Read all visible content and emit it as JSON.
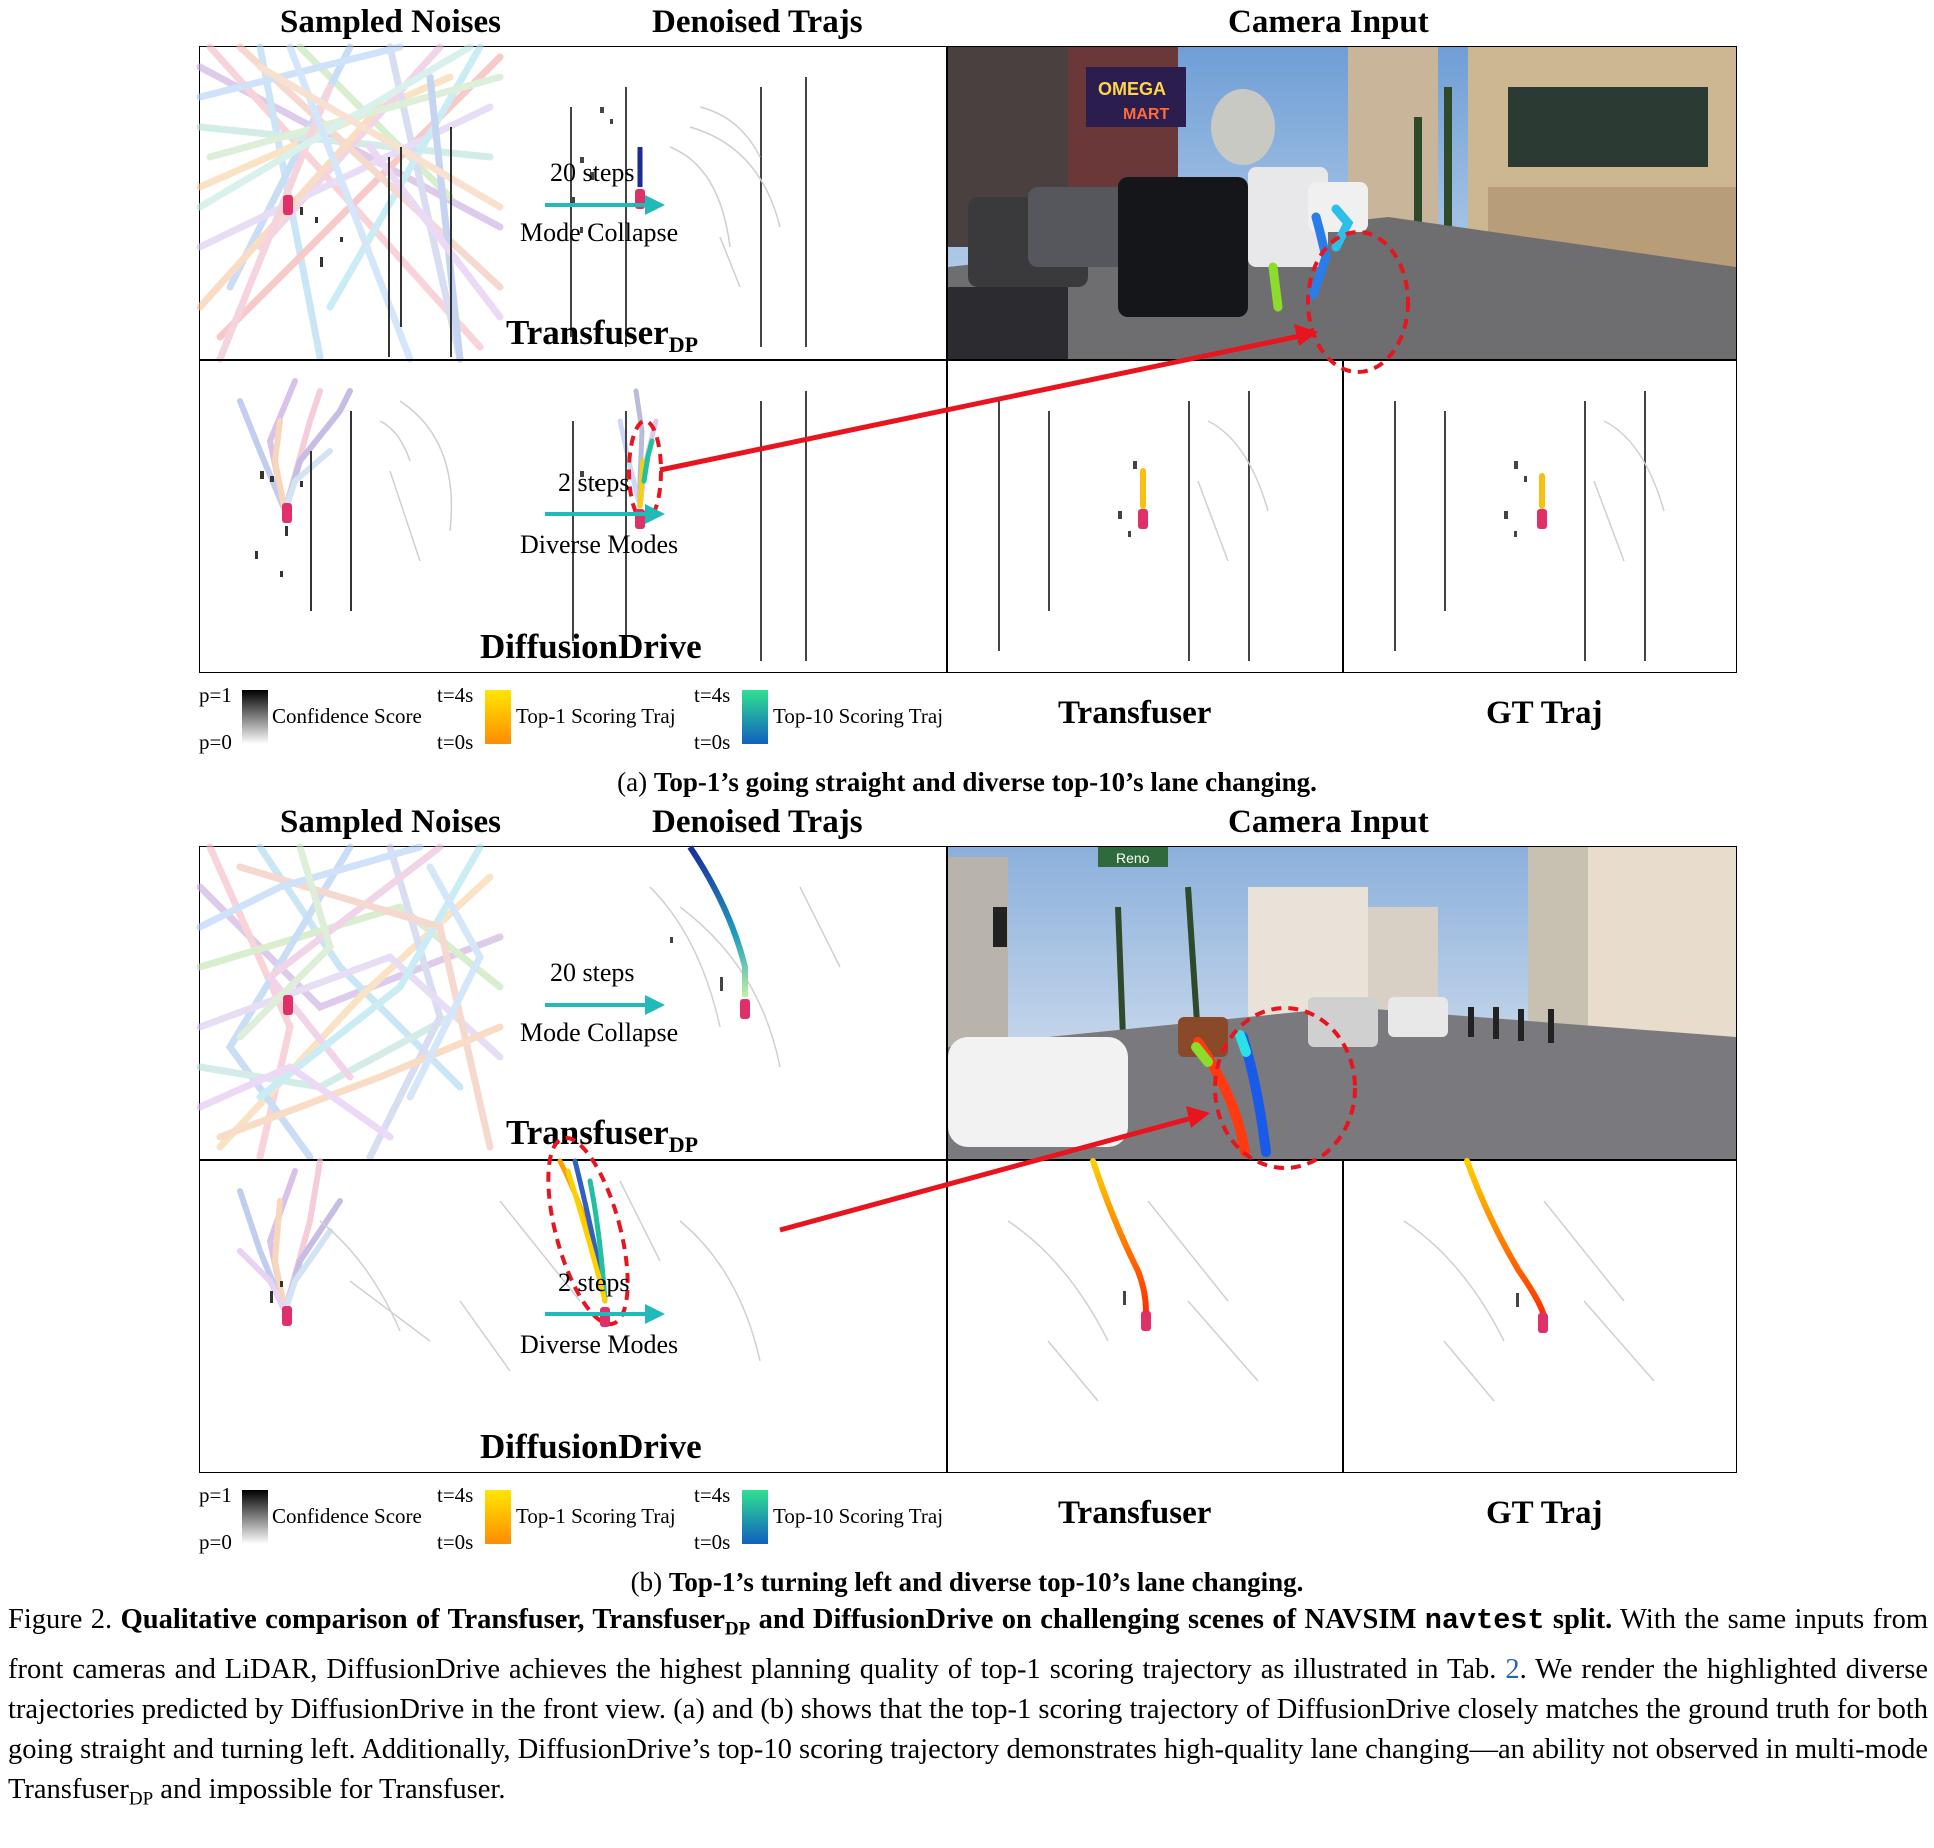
{
  "panel_a": {
    "headers": {
      "sampled_noises": "Sampled Noises",
      "denoised_trajs": "Denoised Trajs",
      "camera_input": "Camera Input"
    },
    "row1": {
      "method_label": "Transfuser",
      "method_sub": "DP",
      "steps_label": "20 steps",
      "effect_label": "Mode Collapse"
    },
    "row2": {
      "method_label": "DiffusionDrive",
      "steps_label": "2 steps",
      "effect_label": "Diverse Modes"
    },
    "legend": {
      "confidence": {
        "top": "p=1",
        "bottom": "p=0",
        "label": "Confidence Score"
      },
      "top1": {
        "top": "t=4s",
        "bottom": "t=0s",
        "label": "Top-1 Scoring Traj"
      },
      "top10": {
        "top": "t=4s",
        "bottom": "t=0s",
        "label": "Top-10 Scoring Traj"
      }
    },
    "bottom_labels": {
      "transfuser": "Transfuser",
      "gt": "GT Traj"
    },
    "subcaption_prefix": "(a) ",
    "subcaption_bold": "Top-1’s going straight and diverse top-10’s lane changing."
  },
  "panel_b": {
    "headers": {
      "sampled_noises": "Sampled Noises",
      "denoised_trajs": "Denoised Trajs",
      "camera_input": "Camera Input"
    },
    "row1": {
      "method_label": "Transfuser",
      "method_sub": "DP",
      "steps_label": "20 steps",
      "effect_label": "Mode Collapse"
    },
    "row2": {
      "method_label": "DiffusionDrive",
      "steps_label": "2 steps",
      "effect_label": "Diverse Modes"
    },
    "legend": {
      "confidence": {
        "top": "p=1",
        "bottom": "p=0",
        "label": "Confidence Score"
      },
      "top1": {
        "top": "t=4s",
        "bottom": "t=0s",
        "label": "Top-1 Scoring Traj"
      },
      "top10": {
        "top": "t=4s",
        "bottom": "t=0s",
        "label": "Top-10 Scoring Traj"
      }
    },
    "bottom_labels": {
      "transfuser": "Transfuser",
      "gt": "GT Traj"
    },
    "subcaption_prefix": "(b) ",
    "subcaption_bold": "Top-1’s turning left and diverse top-10’s lane changing."
  },
  "camera_a": {
    "sign_omega": "OMEGA",
    "sign_mart": "MART"
  },
  "camera_b": {
    "street_sign": "Reno"
  },
  "caption": {
    "fig_label": "Figure 2.",
    "bold_1": "Qualitative comparison of Transfuser, Transfuser",
    "bold_sub_1": "DP",
    "bold_2": " and DiffusionDrive on challenging scenes of NAVSIM ",
    "mono": "navtest",
    "bold_3": " split.",
    "text_1": " With the same inputs from front cameras and LiDAR, DiffusionDrive achieves the highest planning quality of top-1 scoring trajectory as illustrated in Tab. ",
    "ref": "2",
    "text_2": ". We render the highlighted diverse trajectories predicted by DiffusionDrive in the front view. (a) and (b) shows that the top-1 scoring trajectory of DiffusionDrive closely matches the ground truth for both going straight and turning left. Additionally, DiffusionDrive’s top-10 scoring trajectory demonstrates high-quality lane changing—an ability not observed in multi-mode Transfuser",
    "sub_2": "DP",
    "text_3": " and impossible for Transfuser."
  },
  "colors": {
    "arrow_teal": "#22b9b9",
    "highlight_red": "#e8141e",
    "ego_car": "#e0306a"
  }
}
